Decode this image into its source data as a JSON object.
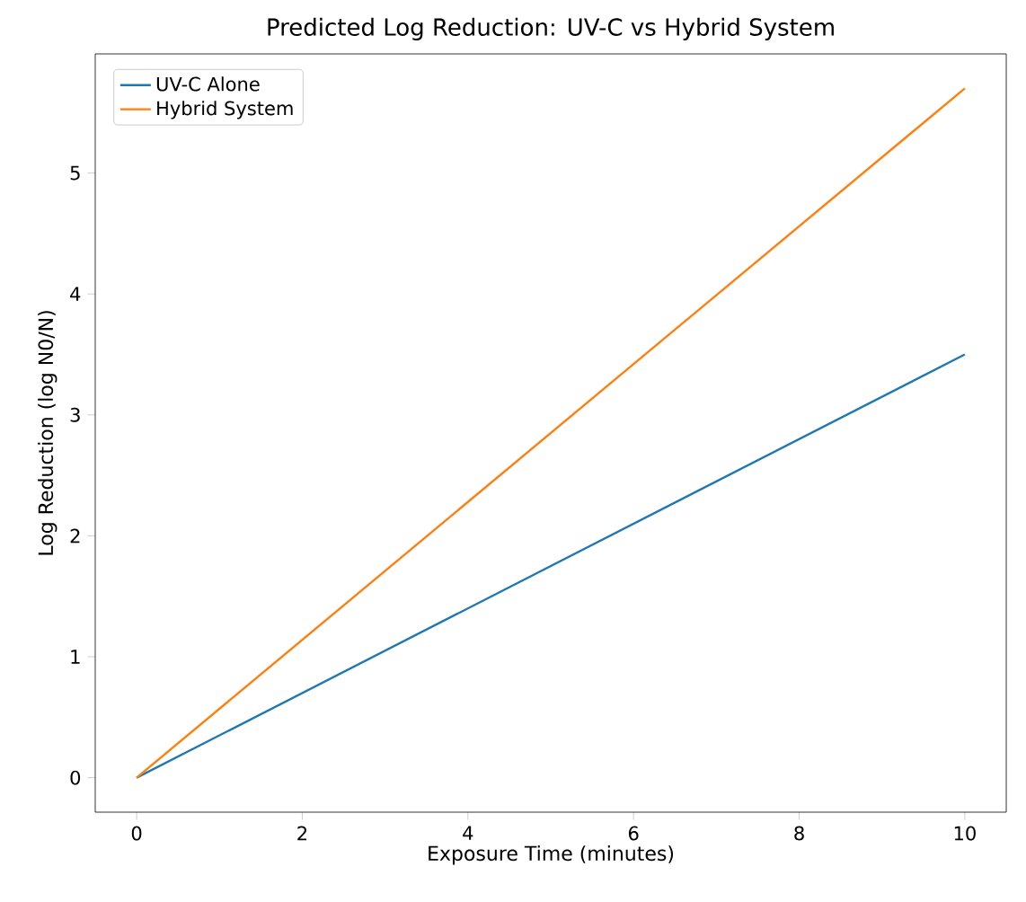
{
  "chart_data": {
    "type": "line",
    "title": "Predicted Log Reduction: UV-C vs Hybrid System",
    "xlabel": "Exposure Time (minutes)",
    "ylabel": "Log Reduction (log N0/N)",
    "x": [
      0,
      10
    ],
    "series": [
      {
        "name": "UV-C Alone",
        "color": "#1f77b4",
        "values": [
          0,
          3.5
        ]
      },
      {
        "name": "Hybrid System",
        "color": "#ff7f0e",
        "values": [
          0,
          5.7
        ]
      }
    ],
    "xlim": [
      -0.5,
      10.5
    ],
    "ylim": [
      -0.285,
      5.985
    ],
    "xticks": [
      0,
      2,
      4,
      6,
      8,
      10
    ],
    "yticks": [
      0,
      1,
      2,
      3,
      4,
      5
    ],
    "grid": false,
    "legend": "top left",
    "marker": "none",
    "line_style": "solid"
  }
}
